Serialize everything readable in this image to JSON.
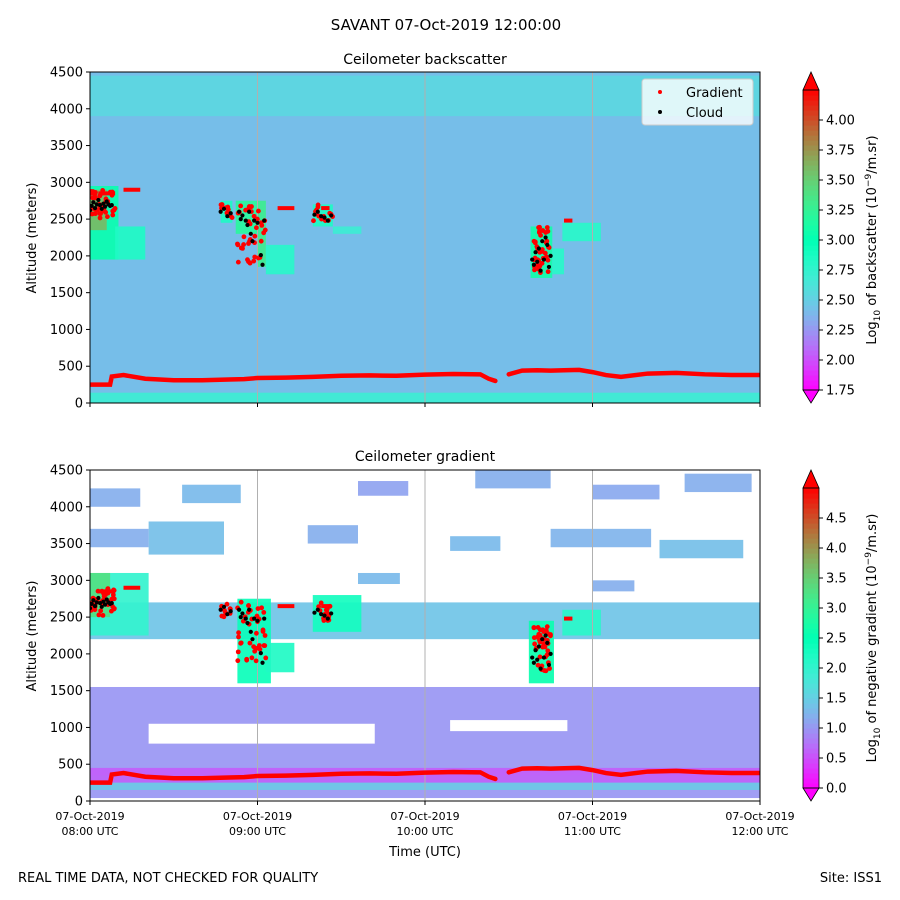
{
  "figure": {
    "title": "SAVANT 07-Oct-2019 12:00:00",
    "footer_left": "REAL TIME DATA, NOT CHECKED FOR QUALITY",
    "footer_right": "Site: ISS1",
    "xlabel": "Time (UTC)"
  },
  "chart_data": [
    {
      "type": "heatmap",
      "title": "Ceilometer backscatter",
      "ylabel": "Altitude (meters)",
      "ylim": [
        0,
        4500
      ],
      "yticks": [
        "0",
        "500",
        "1000",
        "1500",
        "2000",
        "2500",
        "3000",
        "3500",
        "4000",
        "4500"
      ],
      "xlim_hours": [
        8,
        12
      ],
      "xticks": [],
      "colorbar": {
        "label_parts": [
          "Log",
          "10",
          " of backscatter (10",
          "−9",
          "/m.sr)"
        ],
        "range": [
          1.75,
          4.25
        ],
        "ticks": [
          "1.75",
          "2.00",
          "2.25",
          "2.50",
          "2.75",
          "3.00",
          "3.25",
          "3.50",
          "3.75",
          "4.00"
        ],
        "extend": "both",
        "colormap": "rainbow"
      },
      "legend": {
        "placement": "top-right",
        "entries": [
          {
            "label": "Gradient",
            "color": "#ff0000"
          },
          {
            "label": "Cloud",
            "color": "#000000"
          }
        ]
      },
      "background_log10": 2.42,
      "regions": [
        {
          "t0": 8.0,
          "t1": 8.17,
          "alt0": 1950,
          "alt1": 2950,
          "log10": 3.05
        },
        {
          "t0": 8.0,
          "t1": 8.1,
          "alt0": 2350,
          "alt1": 2900,
          "log10": 3.6
        },
        {
          "t0": 8.15,
          "t1": 8.33,
          "alt0": 1950,
          "alt1": 2400,
          "log10": 2.85
        },
        {
          "t0": 8.78,
          "t1": 8.85,
          "alt0": 2450,
          "alt1": 2750,
          "log10": 2.85
        },
        {
          "t0": 8.87,
          "t1": 9.0,
          "alt0": 2300,
          "alt1": 2750,
          "log10": 3.2
        },
        {
          "t0": 9.0,
          "t1": 9.05,
          "alt0": 1850,
          "alt1": 2750,
          "log10": 3.3
        },
        {
          "t0": 9.05,
          "t1": 9.22,
          "alt0": 1750,
          "alt1": 2150,
          "log10": 2.8
        },
        {
          "t0": 9.33,
          "t1": 9.45,
          "alt0": 2400,
          "alt1": 2700,
          "log10": 2.85
        },
        {
          "t0": 9.45,
          "t1": 9.62,
          "alt0": 2300,
          "alt1": 2400,
          "log10": 2.7
        },
        {
          "t0": 10.63,
          "t1": 10.76,
          "alt0": 1700,
          "alt1": 2400,
          "log10": 3.1
        },
        {
          "t0": 10.76,
          "t1": 10.83,
          "alt0": 1750,
          "alt1": 2100,
          "log10": 2.8
        },
        {
          "t0": 10.82,
          "t1": 11.05,
          "alt0": 2200,
          "alt1": 2450,
          "log10": 2.8
        },
        {
          "t0": 8.0,
          "t1": 12.0,
          "alt0": 0,
          "alt1": 140,
          "log10": 2.7
        },
        {
          "t0": 8.0,
          "t1": 12.0,
          "alt0": 3900,
          "alt1": 4450,
          "log10": 2.55
        }
      ],
      "gradient_series": {
        "name": "Gradient",
        "x_hours": [
          8.0,
          8.12,
          8.13,
          8.2,
          8.33,
          8.5,
          8.67,
          8.83,
          8.92,
          9.0,
          9.17,
          9.33,
          9.5,
          9.67,
          9.83,
          10.0,
          10.17,
          10.33,
          10.38,
          10.42,
          10.5,
          10.58,
          10.67,
          10.75,
          10.83,
          10.92,
          11.0,
          11.08,
          11.17,
          11.33,
          11.5,
          11.67,
          11.83,
          12.0
        ],
        "y_m": [
          250,
          250,
          360,
          380,
          330,
          310,
          310,
          320,
          325,
          340,
          345,
          355,
          370,
          375,
          370,
          385,
          395,
          390,
          330,
          300,
          390,
          440,
          445,
          440,
          445,
          450,
          420,
          380,
          355,
          400,
          410,
          390,
          380,
          380
        ],
        "upper_segments": [
          {
            "t0": 8.05,
            "t1": 8.15,
            "alt": 2850
          },
          {
            "t0": 8.2,
            "t1": 8.3,
            "alt": 2900
          },
          {
            "t0": 9.12,
            "t1": 9.22,
            "alt": 2650
          },
          {
            "t0": 9.38,
            "t1": 9.43,
            "alt": 2650
          },
          {
            "t0": 10.83,
            "t1": 10.88,
            "alt": 2480
          }
        ],
        "clusters": [
          {
            "t0": 8.0,
            "t1": 8.15,
            "alt0": 2500,
            "alt1": 2900,
            "n": 38
          },
          {
            "t0": 8.78,
            "t1": 8.85,
            "alt0": 2500,
            "alt1": 2700,
            "n": 10
          },
          {
            "t0": 8.88,
            "t1": 9.05,
            "alt0": 1900,
            "alt1": 2720,
            "n": 40
          },
          {
            "t0": 9.33,
            "t1": 9.45,
            "alt0": 2450,
            "alt1": 2700,
            "n": 14
          },
          {
            "t0": 10.65,
            "t1": 10.75,
            "alt0": 1750,
            "alt1": 2400,
            "n": 40
          }
        ]
      },
      "cloud_series": {
        "name": "Cloud",
        "points": [
          [
            8.0,
            2620
          ],
          [
            8.01,
            2680
          ],
          [
            8.02,
            2730
          ],
          [
            8.03,
            2650
          ],
          [
            8.04,
            2700
          ],
          [
            8.05,
            2760
          ],
          [
            8.06,
            2690
          ],
          [
            8.07,
            2640
          ],
          [
            8.08,
            2710
          ],
          [
            8.09,
            2670
          ],
          [
            8.1,
            2740
          ],
          [
            8.11,
            2700
          ],
          [
            8.12,
            2680
          ],
          [
            8.13,
            2690
          ],
          [
            8.78,
            2600
          ],
          [
            8.8,
            2640
          ],
          [
            8.82,
            2540
          ],
          [
            8.84,
            2580
          ],
          [
            8.89,
            2600
          ],
          [
            8.9,
            2500
          ],
          [
            8.91,
            2550
          ],
          [
            8.93,
            2480
          ],
          [
            8.94,
            2420
          ],
          [
            8.95,
            2600
          ],
          [
            8.96,
            2300
          ],
          [
            8.97,
            2200
          ],
          [
            8.98,
            2480
          ],
          [
            9.0,
            2450
          ],
          [
            9.02,
            2010
          ],
          [
            9.03,
            1880
          ],
          [
            9.04,
            2480
          ],
          [
            9.34,
            2560
          ],
          [
            9.36,
            2600
          ],
          [
            9.38,
            2540
          ],
          [
            9.4,
            2520
          ],
          [
            9.42,
            2480
          ],
          [
            9.44,
            2550
          ],
          [
            10.64,
            1950
          ],
          [
            10.65,
            1880
          ],
          [
            10.66,
            2050
          ],
          [
            10.67,
            1920
          ],
          [
            10.68,
            2100
          ],
          [
            10.69,
            1800
          ],
          [
            10.7,
            2200
          ],
          [
            10.71,
            1950
          ],
          [
            10.72,
            2250
          ],
          [
            10.73,
            2150
          ],
          [
            10.74,
            1850
          ],
          [
            10.75,
            2000
          ]
        ]
      }
    },
    {
      "type": "heatmap",
      "title": "Ceilometer gradient",
      "ylabel": "Altitude (meters)",
      "ylim": [
        0,
        4500
      ],
      "yticks": [
        "0",
        "500",
        "1000",
        "1500",
        "2000",
        "2500",
        "3000",
        "3500",
        "4000",
        "4500"
      ],
      "xlim_hours": [
        8,
        12
      ],
      "xticks": [
        {
          "hour": 8,
          "date": "07-Oct-2019",
          "time": "08:00 UTC"
        },
        {
          "hour": 9,
          "date": "07-Oct-2019",
          "time": "09:00 UTC"
        },
        {
          "hour": 10,
          "date": "07-Oct-2019",
          "time": "10:00 UTC"
        },
        {
          "hour": 11,
          "date": "07-Oct-2019",
          "time": "11:00 UTC"
        },
        {
          "hour": 12,
          "date": "07-Oct-2019",
          "time": "12:00 UTC"
        }
      ],
      "colorbar": {
        "label_parts": [
          "Log",
          "10",
          " of negative gradient (10",
          "−9",
          "/m.sr)"
        ],
        "range": [
          0,
          5
        ],
        "ticks": [
          "0.0",
          "0.5",
          "1.0",
          "1.5",
          "2.0",
          "2.5",
          "3.0",
          "3.5",
          "4.0",
          "4.5"
        ],
        "extend": "both",
        "colormap": "rainbow"
      },
      "background_log10": null,
      "regions": [
        {
          "t0": 8.0,
          "t1": 12.0,
          "alt0": 40,
          "alt1": 1550,
          "log10": 1.0
        },
        {
          "t0": 8.0,
          "t1": 12.0,
          "alt0": 150,
          "alt1": 350,
          "log10": 1.45
        },
        {
          "t0": 8.35,
          "t1": 9.7,
          "alt0": 780,
          "alt1": 1050,
          "log10": null
        },
        {
          "t0": 10.15,
          "t1": 10.85,
          "alt0": 950,
          "alt1": 1100,
          "log10": null
        },
        {
          "t0": 8.0,
          "t1": 12.0,
          "alt0": 2200,
          "alt1": 2700,
          "log10": 1.4
        },
        {
          "t0": 8.0,
          "t1": 8.35,
          "alt0": 2250,
          "alt1": 3100,
          "log10": 2.0
        },
        {
          "t0": 8.0,
          "t1": 8.12,
          "alt0": 2500,
          "alt1": 3100,
          "log10": 3.3
        },
        {
          "t0": 8.88,
          "t1": 9.08,
          "alt0": 1600,
          "alt1": 2750,
          "log10": 2.4
        },
        {
          "t0": 9.05,
          "t1": 9.22,
          "alt0": 1750,
          "alt1": 2150,
          "log10": 2.2
        },
        {
          "t0": 9.33,
          "t1": 9.62,
          "alt0": 2300,
          "alt1": 2800,
          "log10": 2.3
        },
        {
          "t0": 10.62,
          "t1": 10.77,
          "alt0": 1600,
          "alt1": 2450,
          "log10": 2.6
        },
        {
          "t0": 10.82,
          "t1": 11.05,
          "alt0": 2250,
          "alt1": 2600,
          "log10": 2.1
        },
        {
          "t0": 8.35,
          "t1": 8.8,
          "alt0": 3350,
          "alt1": 3800,
          "log10": 1.35
        },
        {
          "t0": 9.3,
          "t1": 9.6,
          "alt0": 3500,
          "alt1": 3750,
          "log10": 1.2
        },
        {
          "t0": 10.15,
          "t1": 10.45,
          "alt0": 3400,
          "alt1": 3600,
          "log10": 1.3
        },
        {
          "t0": 10.75,
          "t1": 11.35,
          "alt0": 3450,
          "alt1": 3700,
          "log10": 1.25
        },
        {
          "t0": 11.4,
          "t1": 11.9,
          "alt0": 3300,
          "alt1": 3550,
          "log10": 1.35
        },
        {
          "t0": 8.0,
          "t1": 8.35,
          "alt0": 3450,
          "alt1": 3700,
          "log10": 1.2
        },
        {
          "t0": 8.0,
          "t1": 8.3,
          "alt0": 4000,
          "alt1": 4250,
          "log10": 1.2
        },
        {
          "t0": 8.55,
          "t1": 8.9,
          "alt0": 4050,
          "alt1": 4300,
          "log10": 1.3
        },
        {
          "t0": 9.6,
          "t1": 9.9,
          "alt0": 4150,
          "alt1": 4350,
          "log10": 1.1
        },
        {
          "t0": 10.3,
          "t1": 10.75,
          "alt0": 4250,
          "alt1": 4500,
          "log10": 1.2
        },
        {
          "t0": 11.0,
          "t1": 11.4,
          "alt0": 4100,
          "alt1": 4300,
          "log10": 1.15
        },
        {
          "t0": 11.55,
          "t1": 11.95,
          "alt0": 4200,
          "alt1": 4450,
          "log10": 1.2
        },
        {
          "t0": 9.6,
          "t1": 9.85,
          "alt0": 2950,
          "alt1": 3100,
          "log10": 1.3
        },
        {
          "t0": 11.0,
          "t1": 11.25,
          "alt0": 2850,
          "alt1": 3000,
          "log10": 1.2
        },
        {
          "t0": 8.0,
          "t1": 12.0,
          "alt0": 250,
          "alt1": 450,
          "log10": 0.6
        }
      ],
      "gradient_series": {
        "name": "Gradient",
        "x_hours": [
          8.0,
          8.12,
          8.13,
          8.2,
          8.33,
          8.5,
          8.67,
          8.83,
          8.92,
          9.0,
          9.17,
          9.33,
          9.5,
          9.67,
          9.83,
          10.0,
          10.17,
          10.33,
          10.38,
          10.42,
          10.5,
          10.58,
          10.67,
          10.75,
          10.83,
          10.92,
          11.0,
          11.08,
          11.17,
          11.33,
          11.5,
          11.67,
          11.83,
          12.0
        ],
        "y_m": [
          250,
          250,
          360,
          380,
          330,
          310,
          310,
          320,
          325,
          340,
          345,
          355,
          370,
          375,
          370,
          385,
          395,
          390,
          330,
          300,
          390,
          440,
          445,
          440,
          445,
          450,
          420,
          380,
          355,
          400,
          410,
          390,
          380,
          380
        ],
        "upper_segments": [
          {
            "t0": 8.05,
            "t1": 8.15,
            "alt": 2850
          },
          {
            "t0": 8.2,
            "t1": 8.3,
            "alt": 2900
          },
          {
            "t0": 9.12,
            "t1": 9.22,
            "alt": 2650
          },
          {
            "t0": 9.38,
            "t1": 9.43,
            "alt": 2650
          },
          {
            "t0": 10.83,
            "t1": 10.88,
            "alt": 2480
          }
        ],
        "clusters": [
          {
            "t0": 8.0,
            "t1": 8.15,
            "alt0": 2500,
            "alt1": 2900,
            "n": 38
          },
          {
            "t0": 8.78,
            "t1": 8.85,
            "alt0": 2500,
            "alt1": 2700,
            "n": 10
          },
          {
            "t0": 8.88,
            "t1": 9.05,
            "alt0": 1900,
            "alt1": 2720,
            "n": 40
          },
          {
            "t0": 9.33,
            "t1": 9.45,
            "alt0": 2450,
            "alt1": 2700,
            "n": 14
          },
          {
            "t0": 10.65,
            "t1": 10.75,
            "alt0": 1750,
            "alt1": 2400,
            "n": 40
          }
        ]
      },
      "cloud_series": {
        "name": "Cloud",
        "points": [
          [
            8.0,
            2620
          ],
          [
            8.01,
            2680
          ],
          [
            8.02,
            2730
          ],
          [
            8.03,
            2650
          ],
          [
            8.04,
            2700
          ],
          [
            8.05,
            2760
          ],
          [
            8.06,
            2690
          ],
          [
            8.07,
            2640
          ],
          [
            8.08,
            2710
          ],
          [
            8.09,
            2670
          ],
          [
            8.1,
            2740
          ],
          [
            8.11,
            2700
          ],
          [
            8.12,
            2680
          ],
          [
            8.13,
            2690
          ],
          [
            8.78,
            2600
          ],
          [
            8.8,
            2640
          ],
          [
            8.82,
            2540
          ],
          [
            8.84,
            2580
          ],
          [
            8.89,
            2600
          ],
          [
            8.9,
            2500
          ],
          [
            8.91,
            2550
          ],
          [
            8.93,
            2480
          ],
          [
            8.94,
            2420
          ],
          [
            8.95,
            2600
          ],
          [
            8.96,
            2300
          ],
          [
            8.97,
            2200
          ],
          [
            8.98,
            2480
          ],
          [
            9.0,
            2450
          ],
          [
            9.02,
            2010
          ],
          [
            9.03,
            1880
          ],
          [
            9.04,
            2480
          ],
          [
            9.34,
            2560
          ],
          [
            9.36,
            2600
          ],
          [
            9.38,
            2540
          ],
          [
            9.4,
            2520
          ],
          [
            9.42,
            2480
          ],
          [
            9.44,
            2550
          ],
          [
            10.64,
            1950
          ],
          [
            10.65,
            1880
          ],
          [
            10.66,
            2050
          ],
          [
            10.67,
            1920
          ],
          [
            10.68,
            2100
          ],
          [
            10.69,
            1800
          ],
          [
            10.7,
            2200
          ],
          [
            10.71,
            1950
          ],
          [
            10.72,
            2250
          ],
          [
            10.73,
            2150
          ],
          [
            10.74,
            1850
          ],
          [
            10.75,
            2000
          ]
        ]
      }
    }
  ]
}
